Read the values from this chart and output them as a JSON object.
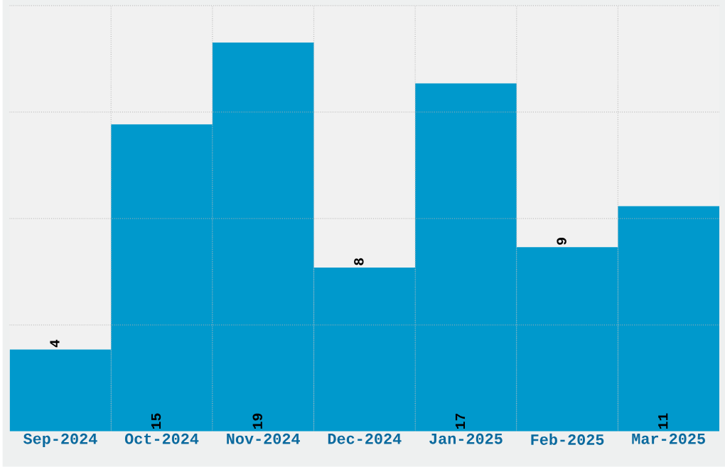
{
  "chart_data": {
    "type": "bar",
    "categories": [
      "Sep-2024",
      "Oct-2024",
      "Nov-2024",
      "Dec-2024",
      "Jan-2025",
      "Feb-2025",
      "Mar-2025"
    ],
    "values": [
      4,
      15,
      19,
      8,
      17,
      9,
      11
    ],
    "color": "#0099cc",
    "ylim": [
      0,
      20.8
    ],
    "yticks": [
      {
        "value": 5.2,
        "label": null
      },
      {
        "value": 10.4,
        "label": null
      },
      {
        "value": 15.6,
        "label": null
      },
      {
        "value": 20.8,
        "label": null
      }
    ],
    "grid": true,
    "data_labels": true
  }
}
